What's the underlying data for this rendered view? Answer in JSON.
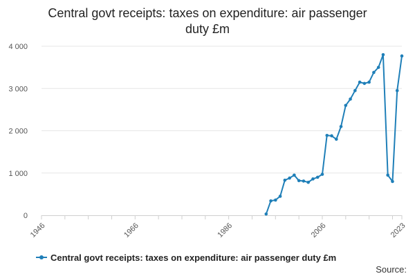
{
  "chart_data": {
    "type": "line",
    "title_lines": [
      "Central govt receipts: taxes on expenditure: air passenger",
      "duty £m"
    ],
    "xlabel": "",
    "ylabel": "",
    "xlim": [
      1946,
      2023
    ],
    "ylim": [
      0,
      4000
    ],
    "x_ticks": [
      1946,
      1966,
      1986,
      2006,
      2023
    ],
    "y_ticks": [
      0,
      1000,
      2000,
      3000,
      4000
    ],
    "y_tick_labels": [
      "0",
      "1 000",
      "2 000",
      "3 000",
      "4 000"
    ],
    "grid": "horizontal",
    "legend_position": "bottom",
    "source_label": "Source:",
    "series": [
      {
        "name": "Central govt receipts: taxes on expenditure: air passenger duty £m",
        "color": "#1f7fb8",
        "x": [
          1994,
          1995,
          1996,
          1997,
          1998,
          1999,
          2000,
          2001,
          2002,
          2003,
          2004,
          2005,
          2006,
          2007,
          2008,
          2009,
          2010,
          2011,
          2012,
          2013,
          2014,
          2015,
          2016,
          2017,
          2018,
          2019,
          2020,
          2021,
          2022,
          2023
        ],
        "values": [
          30,
          340,
          360,
          450,
          830,
          880,
          950,
          820,
          810,
          780,
          860,
          900,
          970,
          1890,
          1880,
          1800,
          2100,
          2600,
          2750,
          2950,
          3150,
          3120,
          3150,
          3380,
          3500,
          3800,
          950,
          800,
          2950,
          3770
        ]
      }
    ]
  }
}
